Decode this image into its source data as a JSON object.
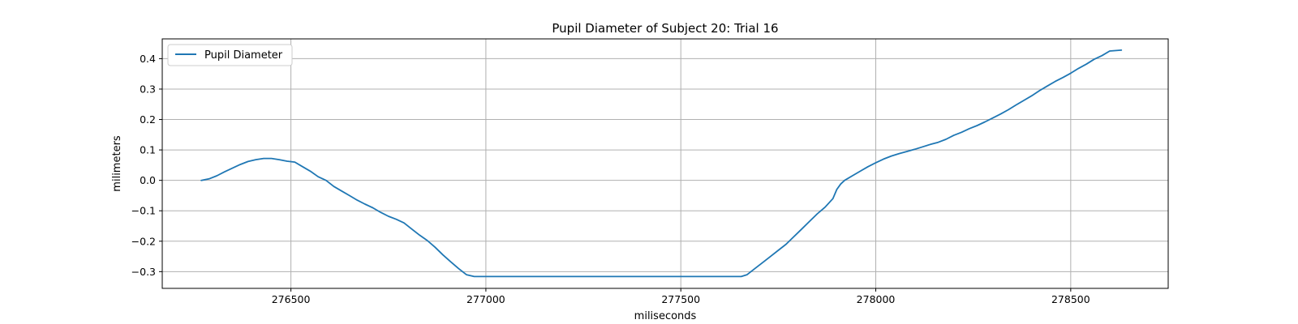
{
  "chart_data": {
    "type": "line",
    "title": "Pupil Diameter of Subject 20: Trial 16",
    "xlabel": "miliseconds",
    "ylabel": "milimeters",
    "xlim": [
      276170,
      278750
    ],
    "ylim": [
      -0.355,
      0.465
    ],
    "xticks": [
      276500,
      277000,
      277500,
      278000,
      278500
    ],
    "yticks": [
      -0.3,
      -0.2,
      -0.1,
      0.0,
      0.1,
      0.2,
      0.3,
      0.4
    ],
    "grid": true,
    "legend_position": "upper-left",
    "series": [
      {
        "name": "Pupil Diameter",
        "color": "#1f77b4",
        "x": [
          276270,
          276290,
          276310,
          276330,
          276350,
          276370,
          276390,
          276410,
          276430,
          276450,
          276470,
          276490,
          276510,
          276530,
          276550,
          276570,
          276590,
          276610,
          276630,
          276650,
          276670,
          276690,
          276710,
          276730,
          276750,
          276770,
          276790,
          276810,
          276830,
          276850,
          276870,
          276890,
          276910,
          276930,
          276950,
          276970,
          276985,
          277000,
          277100,
          277200,
          277300,
          277400,
          277500,
          277600,
          277655,
          277670,
          277690,
          277710,
          277730,
          277750,
          277770,
          277790,
          277810,
          277830,
          277850,
          277870,
          277890,
          277900,
          277910,
          277920,
          277940,
          277960,
          277980,
          278000,
          278020,
          278040,
          278060,
          278080,
          278100,
          278120,
          278140,
          278160,
          278180,
          278200,
          278220,
          278240,
          278260,
          278280,
          278300,
          278320,
          278340,
          278360,
          278380,
          278400,
          278420,
          278440,
          278460,
          278480,
          278500,
          278520,
          278540,
          278560,
          278580,
          278600,
          278630
        ],
        "values": [
          0.0,
          0.005,
          0.015,
          0.028,
          0.04,
          0.052,
          0.062,
          0.068,
          0.072,
          0.072,
          0.068,
          0.063,
          0.06,
          0.045,
          0.03,
          0.012,
          0.0,
          -0.02,
          -0.035,
          -0.05,
          -0.065,
          -0.078,
          -0.09,
          -0.105,
          -0.118,
          -0.128,
          -0.14,
          -0.16,
          -0.18,
          -0.198,
          -0.22,
          -0.245,
          -0.268,
          -0.29,
          -0.31,
          -0.316,
          -0.316,
          -0.316,
          -0.316,
          -0.316,
          -0.316,
          -0.316,
          -0.316,
          -0.316,
          -0.316,
          -0.31,
          -0.29,
          -0.27,
          -0.25,
          -0.23,
          -0.21,
          -0.185,
          -0.16,
          -0.135,
          -0.11,
          -0.088,
          -0.06,
          -0.03,
          -0.012,
          0.0,
          0.015,
          0.03,
          0.045,
          0.058,
          0.07,
          0.08,
          0.088,
          0.095,
          0.102,
          0.11,
          0.118,
          0.125,
          0.135,
          0.148,
          0.158,
          0.17,
          0.18,
          0.192,
          0.205,
          0.218,
          0.232,
          0.248,
          0.263,
          0.278,
          0.295,
          0.31,
          0.325,
          0.338,
          0.352,
          0.368,
          0.382,
          0.398,
          0.41,
          0.425,
          0.428
        ]
      }
    ]
  }
}
